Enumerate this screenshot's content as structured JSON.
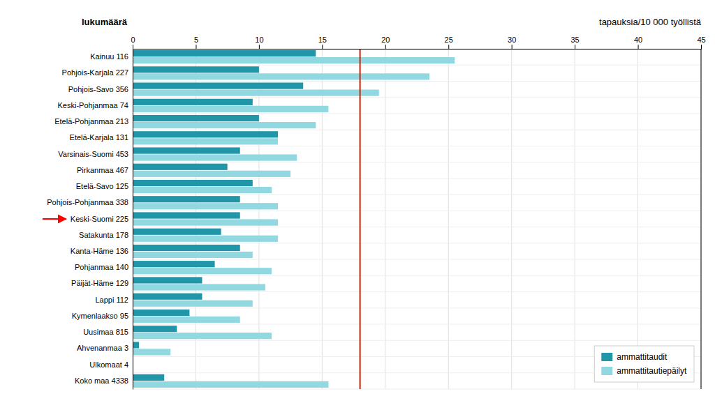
{
  "chart_data": {
    "type": "bar",
    "orientation": "horizontal",
    "title": "tapauksia/10 000 työllistä",
    "ylabel": "lukumäärä",
    "categories": [
      "Kainuu 116",
      "Pohjois-Karjala 227",
      "Pohjois-Savo 356",
      "Keski-Pohjanmaa 74",
      "Etelä-Pohjanmaa 213",
      "Etelä-Karjala 131",
      "Varsinais-Suomi 453",
      "Pirkanmaa 467",
      "Etelä-Savo 125",
      "Pohjois-Pohjanmaa 338",
      "Keski-Suomi 225",
      "Satakunta 178",
      "Kanta-Häme 136",
      "Pohjanmaa 140",
      "Päijät-Häme 129",
      "Lappi 112",
      "Kymenlaakso 95",
      "Uusimaa 815",
      "Ahvenanmaa 3",
      "Ulkomaat 4",
      "Koko maa 4338"
    ],
    "series": [
      {
        "name": "ammattitaudit",
        "color": "#2196a8",
        "values": [
          14.5,
          10.0,
          13.5,
          9.5,
          10.0,
          11.5,
          8.5,
          7.5,
          9.5,
          8.5,
          8.5,
          7.0,
          8.5,
          6.5,
          5.5,
          5.5,
          4.5,
          3.5,
          0.5,
          0.0,
          2.5
        ]
      },
      {
        "name": "ammattitautiepäilyt",
        "color": "#92d8e0",
        "values": [
          25.5,
          23.5,
          19.5,
          15.5,
          14.5,
          11.5,
          13.0,
          12.5,
          11.0,
          11.5,
          11.5,
          11.5,
          9.5,
          11.0,
          10.5,
          9.5,
          8.5,
          11.0,
          3.0,
          0.0,
          15.5
        ]
      }
    ],
    "xlim": [
      0,
      45
    ],
    "xticks": [
      0,
      5,
      10,
      15,
      20,
      25,
      30,
      35,
      40,
      45
    ],
    "grid": true,
    "legend": "lower right",
    "annotations": [
      {
        "type": "vline",
        "x": 18.0,
        "color": "#cc2200"
      },
      {
        "type": "arrow",
        "category": "Keski-Suomi 225",
        "color": "red"
      }
    ]
  }
}
